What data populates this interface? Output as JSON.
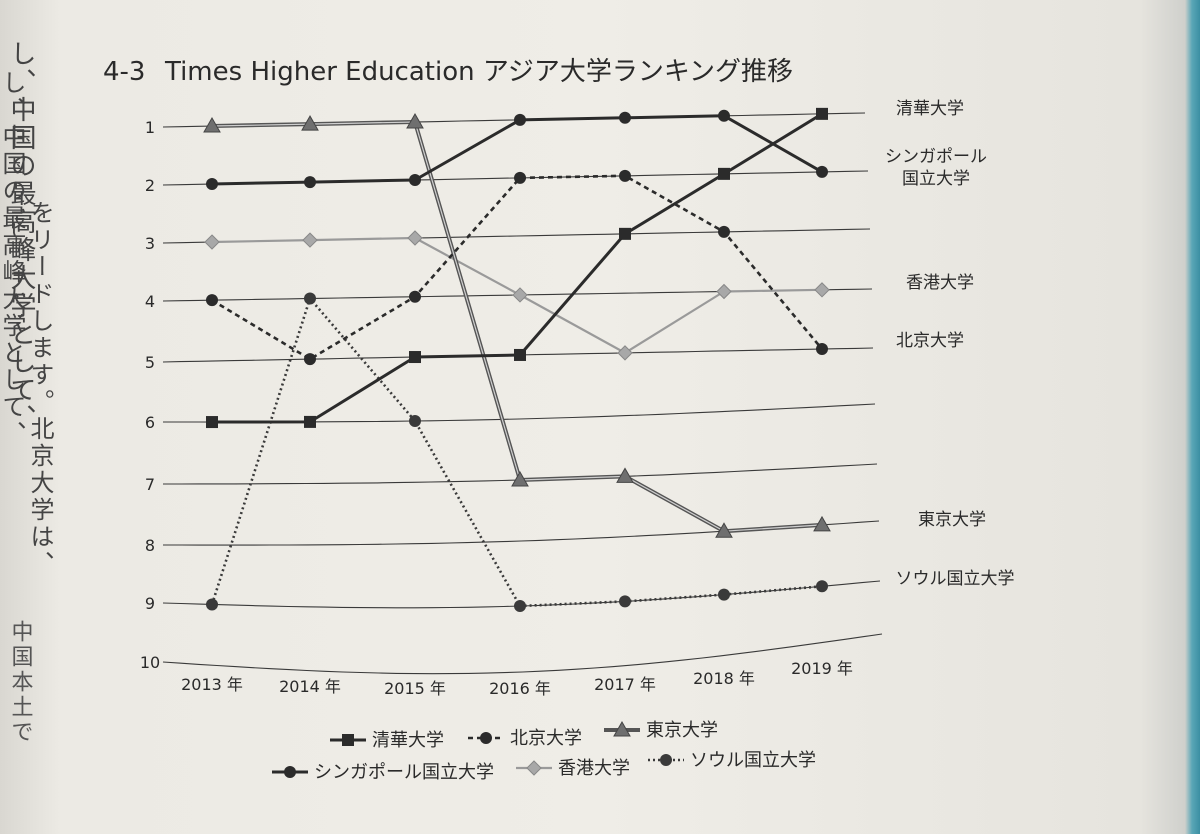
{
  "figure_number": "4-3",
  "side_text": {
    "col1": "し、中国の最高峰大学として、",
    "col2": "をリードします。北京大学は、",
    "col3": "中国本土で"
  },
  "chart_data": {
    "type": "line",
    "title": "Times Higher Education アジア大学ランキング推移",
    "x": [
      "2013 年",
      "2014 年",
      "2015 年",
      "2016 年",
      "2017 年",
      "2018 年",
      "2019 年"
    ],
    "y_ticks": [
      1,
      2,
      3,
      4,
      5,
      6,
      7,
      8,
      9,
      10
    ],
    "ylim": [
      1,
      10
    ],
    "y_inverted": true,
    "xlabel": "",
    "ylabel": "",
    "grid": true,
    "legend_position": "bottom",
    "series": [
      {
        "name": "清華大学",
        "label": "清華大学",
        "values": [
          6,
          6,
          5,
          5,
          3,
          2,
          1
        ],
        "marker": "square",
        "line": "solid",
        "color": "#2b2b2b"
      },
      {
        "name": "北京大学",
        "label": "北京大学",
        "values": [
          4,
          5,
          4,
          2,
          2,
          3,
          5
        ],
        "marker": "circle",
        "line": "dashed",
        "color": "#2b2b2b"
      },
      {
        "name": "東京大学",
        "label": "東京大学",
        "values": [
          1,
          1,
          1,
          7,
          7,
          8,
          8
        ],
        "marker": "triangle",
        "line": "double",
        "color": "#555555"
      },
      {
        "name": "シンガポール国立大学",
        "label_lines": [
          "シンガポール",
          "国立大学"
        ],
        "values": [
          2,
          2,
          2,
          1,
          1,
          1,
          2
        ],
        "marker": "circle",
        "line": "solid",
        "color": "#2b2b2b"
      },
      {
        "name": "香港大学",
        "label": "香港大学",
        "values": [
          3,
          3,
          3,
          4,
          5,
          4,
          4
        ],
        "marker": "diamond",
        "line": "solid",
        "color": "#9a9a9a"
      },
      {
        "name": "ソウル国立大学",
        "label": "ソウル国立大学",
        "values": [
          9,
          4,
          6,
          9,
          9,
          9,
          9
        ],
        "marker": "circle",
        "line": "dotted",
        "color": "#3a3a3a"
      }
    ]
  }
}
